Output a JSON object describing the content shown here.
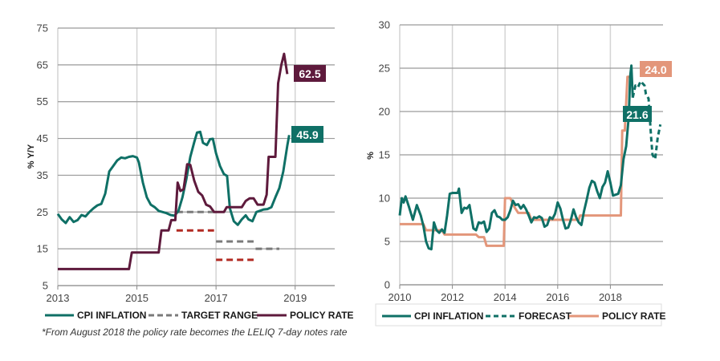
{
  "colors": {
    "cpi": "#0f7066",
    "policy_left": "#5e1a3c",
    "target_grey": "#7a7a7a",
    "target_red": "#b22a22",
    "policy_right": "#e3967a",
    "grid": "#9a9a9a",
    "vgrid": "#d4d4d4"
  },
  "chart_data": [
    {
      "type": "line",
      "title": "",
      "xlabel": "",
      "ylabel": "% Y/Y",
      "xlim": [
        2013,
        2020
      ],
      "ylim": [
        5,
        75
      ],
      "x_ticks": [
        "2013",
        "2015",
        "2017",
        "2019"
      ],
      "y_ticks": [
        "5",
        "15",
        "25",
        "35",
        "45",
        "55",
        "65",
        "75"
      ],
      "grid": true,
      "legend_position": "bottom",
      "legend": [
        "CPI INFLATION",
        "TARGET RANGE",
        "POLICY RATE"
      ],
      "note": "*From August 2018 the policy rate becomes the LELIQ 7-day   notes rate",
      "end_labels": [
        {
          "series": "POLICY RATE",
          "value": "62.5"
        },
        {
          "series": "CPI INFLATION",
          "value": "45.9"
        }
      ],
      "series": [
        {
          "name": "CPI INFLATION",
          "style": "solid",
          "points": [
            [
              2013.0,
              24.5
            ],
            [
              2013.1,
              23
            ],
            [
              2013.2,
              22
            ],
            [
              2013.3,
              23.6
            ],
            [
              2013.4,
              22.3
            ],
            [
              2013.5,
              22.8
            ],
            [
              2013.6,
              24.2
            ],
            [
              2013.7,
              23.8
            ],
            [
              2013.8,
              25
            ],
            [
              2013.9,
              26
            ],
            [
              2014.0,
              26.8
            ],
            [
              2014.1,
              27.2
            ],
            [
              2014.2,
              30
            ],
            [
              2014.3,
              36
            ],
            [
              2014.4,
              37.5
            ],
            [
              2014.5,
              39
            ],
            [
              2014.6,
              39.8
            ],
            [
              2014.7,
              39.6
            ],
            [
              2014.8,
              40
            ],
            [
              2014.9,
              40.2
            ],
            [
              2015.0,
              39.8
            ],
            [
              2015.05,
              38.5
            ],
            [
              2015.15,
              33
            ],
            [
              2015.25,
              29
            ],
            [
              2015.35,
              27
            ],
            [
              2015.45,
              26.3
            ],
            [
              2015.55,
              25.3
            ],
            [
              2015.65,
              25
            ],
            [
              2015.75,
              24.7
            ],
            [
              2015.85,
              24.2
            ],
            [
              2015.95,
              24
            ],
            [
              2016.05,
              25.3
            ],
            [
              2016.15,
              29
            ],
            [
              2016.25,
              34
            ],
            [
              2016.35,
              40
            ],
            [
              2016.45,
              44
            ],
            [
              2016.52,
              46.6
            ],
            [
              2016.6,
              46.8
            ],
            [
              2016.67,
              43.8
            ],
            [
              2016.77,
              43.2
            ],
            [
              2016.85,
              44.8
            ],
            [
              2016.92,
              44.9
            ],
            [
              2017.0,
              41
            ],
            [
              2017.1,
              37.5
            ],
            [
              2017.2,
              35.3
            ],
            [
              2017.28,
              34.8
            ],
            [
              2017.35,
              26
            ],
            [
              2017.45,
              22.5
            ],
            [
              2017.55,
              21.5
            ],
            [
              2017.65,
              23
            ],
            [
              2017.75,
              24.1
            ],
            [
              2017.82,
              23
            ],
            [
              2017.92,
              22.5
            ],
            [
              2018.02,
              25
            ],
            [
              2018.1,
              25.3
            ],
            [
              2018.2,
              25.7
            ],
            [
              2018.3,
              25.8
            ],
            [
              2018.4,
              26.3
            ],
            [
              2018.5,
              29
            ],
            [
              2018.6,
              31.5
            ],
            [
              2018.7,
              36
            ],
            [
              2018.8,
              43
            ],
            [
              2018.85,
              45.9
            ]
          ]
        },
        {
          "name": "POLICY RATE",
          "style": "solid",
          "points": [
            [
              2013.0,
              9.5
            ],
            [
              2014.8,
              9.5
            ],
            [
              2014.87,
              14
            ],
            [
              2015.55,
              14
            ],
            [
              2015.62,
              20
            ],
            [
              2015.8,
              20
            ],
            [
              2015.87,
              22.8
            ],
            [
              2015.97,
              22.8
            ],
            [
              2016.03,
              33
            ],
            [
              2016.1,
              30.7
            ],
            [
              2016.18,
              31.2
            ],
            [
              2016.27,
              38
            ],
            [
              2016.35,
              37.8
            ],
            [
              2016.45,
              33.5
            ],
            [
              2016.55,
              30.5
            ],
            [
              2016.65,
              29.5
            ],
            [
              2016.75,
              27
            ],
            [
              2016.85,
              26.5
            ],
            [
              2016.95,
              25
            ],
            [
              2017.2,
              25
            ],
            [
              2017.27,
              26.3
            ],
            [
              2017.65,
              26.3
            ],
            [
              2017.75,
              28
            ],
            [
              2017.85,
              28.7
            ],
            [
              2017.95,
              28.7
            ],
            [
              2018.05,
              27
            ],
            [
              2018.2,
              27
            ],
            [
              2018.28,
              29.7
            ],
            [
              2018.33,
              40
            ],
            [
              2018.5,
              40
            ],
            [
              2018.57,
              60
            ],
            [
              2018.65,
              65
            ],
            [
              2018.72,
              68
            ],
            [
              2018.8,
              62.5
            ]
          ]
        },
        {
          "name": "TARGET RANGE",
          "style": "dashed",
          "segments": [
            {
              "x": [
                2016.0,
                2016.95
              ],
              "y": 25,
              "color": "grey"
            },
            {
              "x": [
                2016.0,
                2016.95
              ],
              "y": 20,
              "color": "red"
            },
            {
              "x": [
                2017.0,
                2017.95
              ],
              "y": 17,
              "color": "grey"
            },
            {
              "x": [
                2017.0,
                2017.95
              ],
              "y": 12,
              "color": "red"
            },
            {
              "x": [
                2018.0,
                2018.6
              ],
              "y": 15,
              "color": "grey"
            }
          ]
        }
      ]
    },
    {
      "type": "line",
      "title": "",
      "xlabel": "",
      "ylabel": "%",
      "xlim": [
        2010,
        2020
      ],
      "ylim": [
        0,
        30
      ],
      "x_ticks": [
        "2010",
        "2012",
        "2014",
        "2016",
        "2018"
      ],
      "y_ticks": [
        "0",
        "5",
        "10",
        "15",
        "20",
        "25",
        "30"
      ],
      "grid": true,
      "legend_position": "bottom",
      "legend": [
        "CPI INFLATION",
        "FORECAST",
        "POLICY RATE"
      ],
      "end_labels": [
        {
          "series": "POLICY RATE",
          "value": "24.0"
        },
        {
          "series": "CPI INFLATION",
          "value": "21.6"
        }
      ],
      "series": [
        {
          "name": "CPI INFLATION",
          "style": "solid",
          "points": [
            [
              2010.0,
              8
            ],
            [
              2010.08,
              10
            ],
            [
              2010.15,
              9.5
            ],
            [
              2010.22,
              10.2
            ],
            [
              2010.35,
              9
            ],
            [
              2010.5,
              7.5
            ],
            [
              2010.65,
              9.2
            ],
            [
              2010.8,
              8
            ],
            [
              2010.9,
              6.8
            ],
            [
              2011.0,
              5
            ],
            [
              2011.1,
              4.2
            ],
            [
              2011.2,
              4.1
            ],
            [
              2011.3,
              7.2
            ],
            [
              2011.4,
              6.3
            ],
            [
              2011.5,
              6
            ],
            [
              2011.6,
              6.4
            ],
            [
              2011.7,
              6
            ],
            [
              2011.8,
              8
            ],
            [
              2011.9,
              10.5
            ],
            [
              2012.0,
              10.6
            ],
            [
              2012.2,
              10.6
            ],
            [
              2012.25,
              11.1
            ],
            [
              2012.35,
              8.3
            ],
            [
              2012.45,
              8.9
            ],
            [
              2012.55,
              8.8
            ],
            [
              2012.65,
              9.2
            ],
            [
              2012.8,
              6.5
            ],
            [
              2012.9,
              6.3
            ],
            [
              2013.0,
              7.2
            ],
            [
              2013.1,
              7.1
            ],
            [
              2013.2,
              7.3
            ],
            [
              2013.3,
              6.1
            ],
            [
              2013.4,
              6.5
            ],
            [
              2013.5,
              8.3
            ],
            [
              2013.6,
              8.6
            ],
            [
              2013.7,
              7.9
            ],
            [
              2013.8,
              7.8
            ],
            [
              2013.9,
              7.5
            ],
            [
              2014.0,
              7.5
            ],
            [
              2014.1,
              7.8
            ],
            [
              2014.2,
              8.6
            ],
            [
              2014.3,
              9.7
            ],
            [
              2014.4,
              9.2
            ],
            [
              2014.5,
              9.3
            ],
            [
              2014.6,
              8.8
            ],
            [
              2014.7,
              9.2
            ],
            [
              2014.8,
              8.7
            ],
            [
              2014.9,
              8
            ],
            [
              2015.0,
              7.2
            ],
            [
              2015.1,
              7.8
            ],
            [
              2015.2,
              7.7
            ],
            [
              2015.3,
              7.9
            ],
            [
              2015.4,
              7.7
            ],
            [
              2015.5,
              6.7
            ],
            [
              2015.6,
              6.9
            ],
            [
              2015.7,
              7.8
            ],
            [
              2015.8,
              7.6
            ],
            [
              2015.9,
              8.2
            ],
            [
              2016.0,
              9.5
            ],
            [
              2016.1,
              8.8
            ],
            [
              2016.2,
              7.5
            ],
            [
              2016.3,
              6.5
            ],
            [
              2016.4,
              6.6
            ],
            [
              2016.5,
              7.5
            ],
            [
              2016.6,
              8.7
            ],
            [
              2016.7,
              7.8
            ],
            [
              2016.8,
              7.2
            ],
            [
              2016.9,
              6.9
            ],
            [
              2017.0,
              8.5
            ],
            [
              2017.1,
              9.8
            ],
            [
              2017.2,
              11.2
            ],
            [
              2017.3,
              12
            ],
            [
              2017.4,
              11.8
            ],
            [
              2017.5,
              10.8
            ],
            [
              2017.6,
              10
            ],
            [
              2017.7,
              11.3
            ],
            [
              2017.8,
              11.8
            ],
            [
              2017.9,
              13.1
            ],
            [
              2018.0,
              11.8
            ],
            [
              2018.1,
              10.3
            ],
            [
              2018.2,
              10.4
            ],
            [
              2018.3,
              10.5
            ],
            [
              2018.4,
              11.5
            ],
            [
              2018.5,
              14.5
            ],
            [
              2018.6,
              16
            ],
            [
              2018.7,
              19.5
            ],
            [
              2018.75,
              24
            ],
            [
              2018.8,
              25.3
            ],
            [
              2018.85,
              21.6
            ]
          ]
        },
        {
          "name": "FORECAST",
          "style": "dashed",
          "points": [
            [
              2018.85,
              21.6
            ],
            [
              2018.95,
              23
            ],
            [
              2019.05,
              22.8
            ],
            [
              2019.15,
              23.5
            ],
            [
              2019.3,
              23
            ],
            [
              2019.35,
              22
            ],
            [
              2019.45,
              21.5
            ],
            [
              2019.55,
              17
            ],
            [
              2019.6,
              15
            ],
            [
              2019.7,
              14.5
            ],
            [
              2019.8,
              17
            ],
            [
              2019.9,
              18.5
            ]
          ]
        },
        {
          "name": "POLICY RATE",
          "style": "solid",
          "points": [
            [
              2010.0,
              7
            ],
            [
              2010.9,
              7
            ],
            [
              2011.0,
              6.3
            ],
            [
              2011.6,
              6.3
            ],
            [
              2011.7,
              5.8
            ],
            [
              2012.9,
              5.8
            ],
            [
              2013.0,
              5.5
            ],
            [
              2013.2,
              5.5
            ],
            [
              2013.3,
              4.5
            ],
            [
              2013.95,
              4.5
            ],
            [
              2014.0,
              10
            ],
            [
              2014.2,
              10
            ],
            [
              2014.35,
              9
            ],
            [
              2014.5,
              8.3
            ],
            [
              2014.9,
              8.3
            ],
            [
              2015.0,
              7.5
            ],
            [
              2016.8,
              7.5
            ],
            [
              2016.85,
              8
            ],
            [
              2018.4,
              8
            ],
            [
              2018.45,
              17.8
            ],
            [
              2018.55,
              17.8
            ],
            [
              2018.65,
              24
            ],
            [
              2018.85,
              24
            ]
          ]
        }
      ]
    }
  ]
}
